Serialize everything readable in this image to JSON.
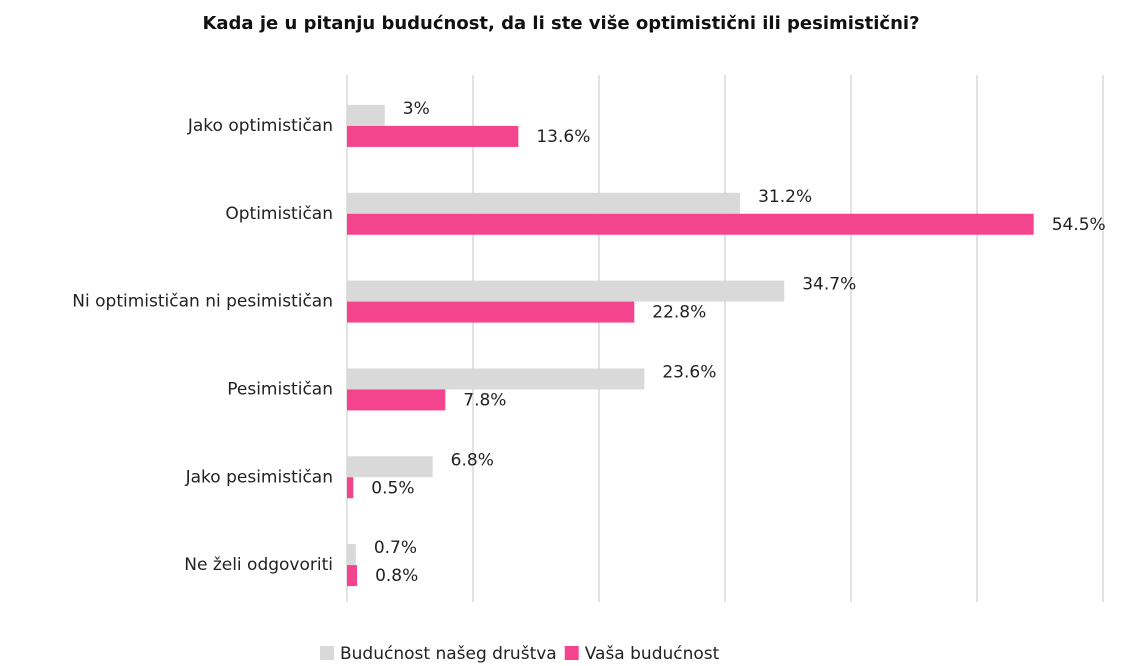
{
  "chart_data": {
    "type": "bar",
    "orientation": "horizontal",
    "title": "Kada je u pitanju budućnost, da li ste više optimistični ili pesimistični?",
    "categories": [
      "Jako optimističan",
      "Optimističan",
      "Ni optimističan ni pesimističan",
      "Pesimističan",
      "Jako pesimističan",
      "Ne želi odgovoriti"
    ],
    "series": [
      {
        "name": "Budućnost našeg društva",
        "color": "#d9d9d9",
        "values": [
          3,
          31.2,
          34.7,
          23.6,
          6.8,
          0.7
        ],
        "value_labels": [
          "3%",
          "31.2%",
          "34.7%",
          "23.6%",
          "6.8%",
          "0.7%"
        ]
      },
      {
        "name": "Vaša budućnost",
        "color": "#f5448e",
        "values": [
          13.6,
          54.5,
          22.8,
          7.8,
          0.5,
          0.8
        ],
        "value_labels": [
          "13.6%",
          "54.5%",
          "22.8%",
          "7.8%",
          "0.5%",
          "0.8%"
        ]
      }
    ],
    "xlim": [
      0,
      60
    ],
    "xticks": [
      0,
      10,
      20,
      30,
      40,
      50,
      60
    ],
    "grid": true,
    "legend": "bottom"
  }
}
